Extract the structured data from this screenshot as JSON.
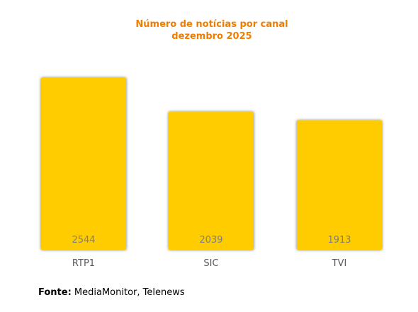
{
  "chart_data": {
    "type": "bar",
    "title": "Número de notícias por canal",
    "subtitle": "dezembro 2025",
    "categories": [
      "RTP1",
      "SIC",
      "TVI"
    ],
    "values": [
      2544,
      2039,
      1913
    ],
    "ylim": [
      0,
      2544
    ],
    "grid": false,
    "legend": "none",
    "colors": {
      "bar": "#ffcc00",
      "title": "#f07d00",
      "value_label": "#7f7f7f",
      "category_label": "#595959"
    }
  },
  "source": {
    "label": "Fonte:",
    "text": "MediaMonitor, Telenews"
  }
}
